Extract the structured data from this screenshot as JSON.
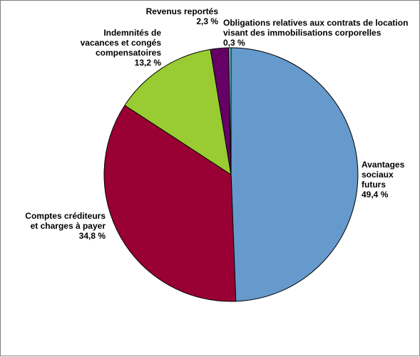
{
  "chart_data": {
    "type": "pie",
    "title": "",
    "start_angle_deg": 0,
    "direction": "clockwise",
    "slices": [
      {
        "name_lines": [
          "Avantages",
          "sociaux",
          "futurs"
        ],
        "value": 49.4,
        "value_label": "49,4 %",
        "color": "#6699CC"
      },
      {
        "name_lines": [
          "Comptes créditeurs",
          "et charges à payer"
        ],
        "value": 34.8,
        "value_label": "34,8 %",
        "color": "#990033"
      },
      {
        "name_lines": [
          "Indemnités de",
          "vacances et congés",
          "compensatoires"
        ],
        "value": 13.2,
        "value_label": "13,2 %",
        "color": "#99CC33"
      },
      {
        "name_lines": [
          "Revenus reportés"
        ],
        "value": 2.3,
        "value_label": "2,3 %",
        "color": "#660066"
      },
      {
        "name_lines": [
          "Obligations relatives aux contrats de location",
          "visant des immobilisations corporelles"
        ],
        "value": 0.3,
        "value_label": "0,3 %",
        "color": "#66CCCC"
      }
    ]
  }
}
